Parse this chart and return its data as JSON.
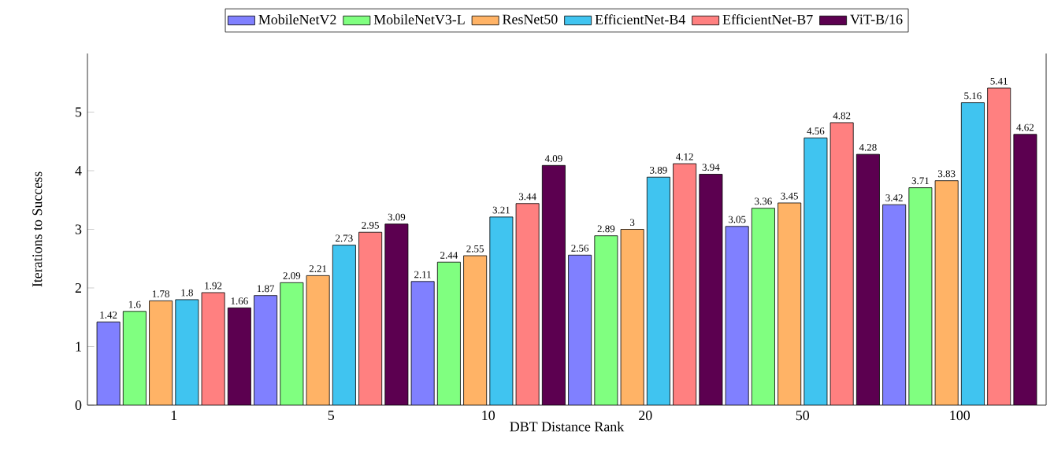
{
  "chart_data": {
    "type": "bar",
    "xlabel": "DBT Distance Rank",
    "ylabel": "Iterations to Success",
    "categories": [
      "1",
      "5",
      "10",
      "20",
      "50",
      "100"
    ],
    "series": [
      {
        "name": "MobileNetV2",
        "color": "#8080ff",
        "values": [
          1.42,
          1.87,
          2.11,
          2.56,
          3.05,
          3.42
        ]
      },
      {
        "name": "MobileNetV3-L",
        "color": "#80ff80",
        "values": [
          1.6,
          2.09,
          2.44,
          2.89,
          3.36,
          3.71
        ]
      },
      {
        "name": "ResNet50",
        "color": "#ffb366",
        "values": [
          1.78,
          2.21,
          2.55,
          3,
          3.45,
          3.83
        ]
      },
      {
        "name": "EfficientNet-B4",
        "color": "#40c4f0",
        "values": [
          1.8,
          2.73,
          3.21,
          3.89,
          4.56,
          5.16
        ]
      },
      {
        "name": "EfficientNet-B7",
        "color": "#ff8080",
        "values": [
          1.92,
          2.95,
          3.44,
          4.12,
          4.82,
          5.41
        ]
      },
      {
        "name": "ViT-B/16",
        "color": "#5c0050",
        "values": [
          1.66,
          3.09,
          4.09,
          3.94,
          4.28,
          4.62
        ]
      }
    ],
    "ylim": [
      0,
      6
    ],
    "yticks": [
      0,
      1,
      2,
      3,
      4,
      5
    ],
    "data_labels": true,
    "legend": "top"
  }
}
